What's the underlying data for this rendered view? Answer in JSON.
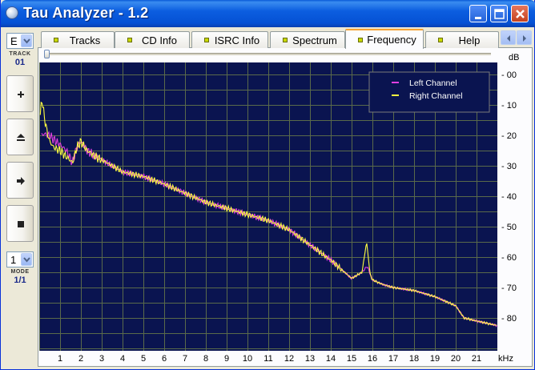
{
  "window": {
    "title": "Tau Analyzer - 1.2"
  },
  "left_panel": {
    "track_combo_value": "E",
    "track_label": "TRACK",
    "track_value": "01",
    "mode_combo_value": "1",
    "mode_label": "MODE",
    "mode_value": "1/1",
    "buttons": [
      "plus-icon",
      "eject-icon",
      "right-arrow-icon",
      "stop-icon"
    ]
  },
  "tabs": [
    {
      "label": "Tracks",
      "active": false
    },
    {
      "label": "CD Info",
      "active": false
    },
    {
      "label": "ISRC Info",
      "active": false
    },
    {
      "label": "Spectrum",
      "active": false
    },
    {
      "label": "Frequency",
      "active": true
    },
    {
      "label": "Help",
      "active": false
    }
  ],
  "colors": {
    "plot_background": "#0a1450",
    "grid": "#5a6a4a",
    "left_channel": "#e040e0",
    "right_channel": "#ffff40",
    "active_tab_accent": "#f7a331"
  },
  "chart_data": {
    "type": "line",
    "xlabel": "kHz",
    "ylabel": "dB",
    "xlim": [
      0,
      22
    ],
    "ylim": [
      -85,
      3
    ],
    "x_ticks": [
      1,
      2,
      3,
      4,
      5,
      6,
      7,
      8,
      9,
      10,
      11,
      12,
      13,
      14,
      15,
      16,
      17,
      18,
      19,
      20,
      21
    ],
    "y_ticks": [
      {
        "value": 0,
        "label": "- 00"
      },
      {
        "value": -10,
        "label": "- 10"
      },
      {
        "value": -20,
        "label": "- 20"
      },
      {
        "value": -30,
        "label": "- 30"
      },
      {
        "value": -40,
        "label": "- 40"
      },
      {
        "value": -50,
        "label": "- 50"
      },
      {
        "value": -60,
        "label": "- 60"
      },
      {
        "value": -70,
        "label": "- 70"
      },
      {
        "value": -80,
        "label": "- 80"
      }
    ],
    "grid": true,
    "legend_position": "top-right",
    "series": [
      {
        "name": "Left Channel",
        "color": "#e040e0",
        "x": [
          0.1,
          0.25,
          0.5,
          0.8,
          1.0,
          1.3,
          1.6,
          1.8,
          2.0,
          2.3,
          2.7,
          3.0,
          4.0,
          5.0,
          6.0,
          7.0,
          8.0,
          9.0,
          10.0,
          11.0,
          12.0,
          13.0,
          14.0,
          15.0,
          15.5,
          15.75,
          16.0,
          16.5,
          17.0,
          18.0,
          19.0,
          20.0,
          20.4,
          21.0,
          22.0
        ],
        "y": [
          -20,
          -19.5,
          -20,
          -22,
          -23,
          -25,
          -29,
          -24,
          -22,
          -25,
          -27,
          -28,
          -32,
          -33.5,
          -36,
          -39,
          -42,
          -44,
          -46,
          -48,
          -51,
          -56,
          -61,
          -67,
          -65,
          -63,
          -67.5,
          -69,
          -70,
          -71,
          -73,
          -76,
          -80,
          -81,
          -82.5
        ]
      },
      {
        "name": "Right Channel",
        "color": "#ffff40",
        "x": [
          0.05,
          0.12,
          0.2,
          0.35,
          0.5,
          0.7,
          1.0,
          1.3,
          1.6,
          1.8,
          2.0,
          2.3,
          2.7,
          3.0,
          4.0,
          5.0,
          6.0,
          7.0,
          8.0,
          9.0,
          10.0,
          11.0,
          12.0,
          13.0,
          14.0,
          15.0,
          15.5,
          15.72,
          15.8,
          15.9,
          16.0,
          16.5,
          17.0,
          18.0,
          19.0,
          20.0,
          20.4,
          21.0,
          22.0
        ],
        "y": [
          -14,
          -7.5,
          -12,
          -18,
          -22,
          -24,
          -25,
          -27,
          -29,
          -24,
          -22,
          -25,
          -27,
          -28,
          -32,
          -33.5,
          -36,
          -39,
          -42,
          -44,
          -46,
          -48,
          -51,
          -56,
          -61,
          -67,
          -65,
          -55,
          -60,
          -66,
          -67.5,
          -69,
          -70,
          -71,
          -73,
          -76,
          -80,
          -81,
          -82.5
        ]
      }
    ]
  }
}
